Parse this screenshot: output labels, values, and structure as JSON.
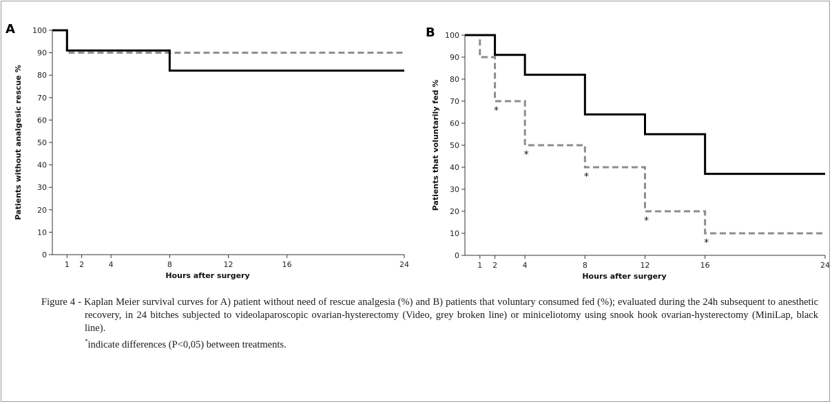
{
  "chart_data": [
    {
      "type": "line",
      "panel_label": "A",
      "xlabel": "Hours after surgery",
      "ylabel": "Patients without analgesic rescue %",
      "xlim": [
        0,
        24
      ],
      "ylim": [
        0,
        100
      ],
      "xticks": [
        1,
        2,
        4,
        8,
        12,
        16,
        24
      ],
      "yticks": [
        0,
        10,
        20,
        30,
        40,
        50,
        60,
        70,
        80,
        90,
        100
      ],
      "grid": false,
      "series": [
        {
          "name": "",
          "style": "solid",
          "color": "#000000",
          "step": true,
          "x": [
            0,
            1,
            8,
            24
          ],
          "y": [
            100,
            91,
            82,
            82
          ]
        },
        {
          "name": "",
          "style": "dashed",
          "color": "#8c8c8c",
          "step": true,
          "x": [
            0,
            1,
            24
          ],
          "y": [
            100,
            90,
            90
          ]
        }
      ],
      "annotations": []
    },
    {
      "type": "line",
      "panel_label": "B",
      "xlabel": "Hours after surgery",
      "ylabel": "Patients that voluntarily fed %",
      "xlim": [
        0,
        24
      ],
      "ylim": [
        0,
        100
      ],
      "xticks": [
        1,
        2,
        4,
        8,
        12,
        16,
        24
      ],
      "yticks": [
        0,
        10,
        20,
        30,
        40,
        50,
        60,
        70,
        80,
        90,
        100
      ],
      "grid": false,
      "series": [
        {
          "name": "",
          "style": "solid",
          "color": "#000000",
          "step": true,
          "x": [
            0,
            2,
            4,
            8,
            12,
            16,
            24
          ],
          "y": [
            100,
            91,
            82,
            64,
            55,
            37,
            37
          ]
        },
        {
          "name": "",
          "style": "dashed",
          "color": "#8c8c8c",
          "step": true,
          "x": [
            0,
            1,
            2,
            4,
            8,
            12,
            16,
            24
          ],
          "y": [
            100,
            90,
            70,
            50,
            40,
            20,
            10,
            10
          ]
        }
      ],
      "annotations": [
        {
          "text": "*",
          "x": 2,
          "y": 70
        },
        {
          "text": "*",
          "x": 4,
          "y": 50
        },
        {
          "text": "*",
          "x": 8,
          "y": 40
        },
        {
          "text": "*",
          "x": 12,
          "y": 20
        },
        {
          "text": "*",
          "x": 16,
          "y": 10
        }
      ]
    }
  ],
  "caption": {
    "line1": "Figure 4 - Kaplan Meier survival curves for A) patient without need of rescue analgesia (%) and B) patients that voluntary consumed fed (%); evaluated during the 24h subsequent to anesthetic recovery, in 24 bitches subjected to videolaparoscopic ovarian-hysterectomy (Video, grey broken line) or miniceliotomy using snook hook ovarian-hysterectomy (MiniLap, black line).",
    "note_marker": "*",
    "note": "indicate differences (P<0,05) between treatments."
  }
}
